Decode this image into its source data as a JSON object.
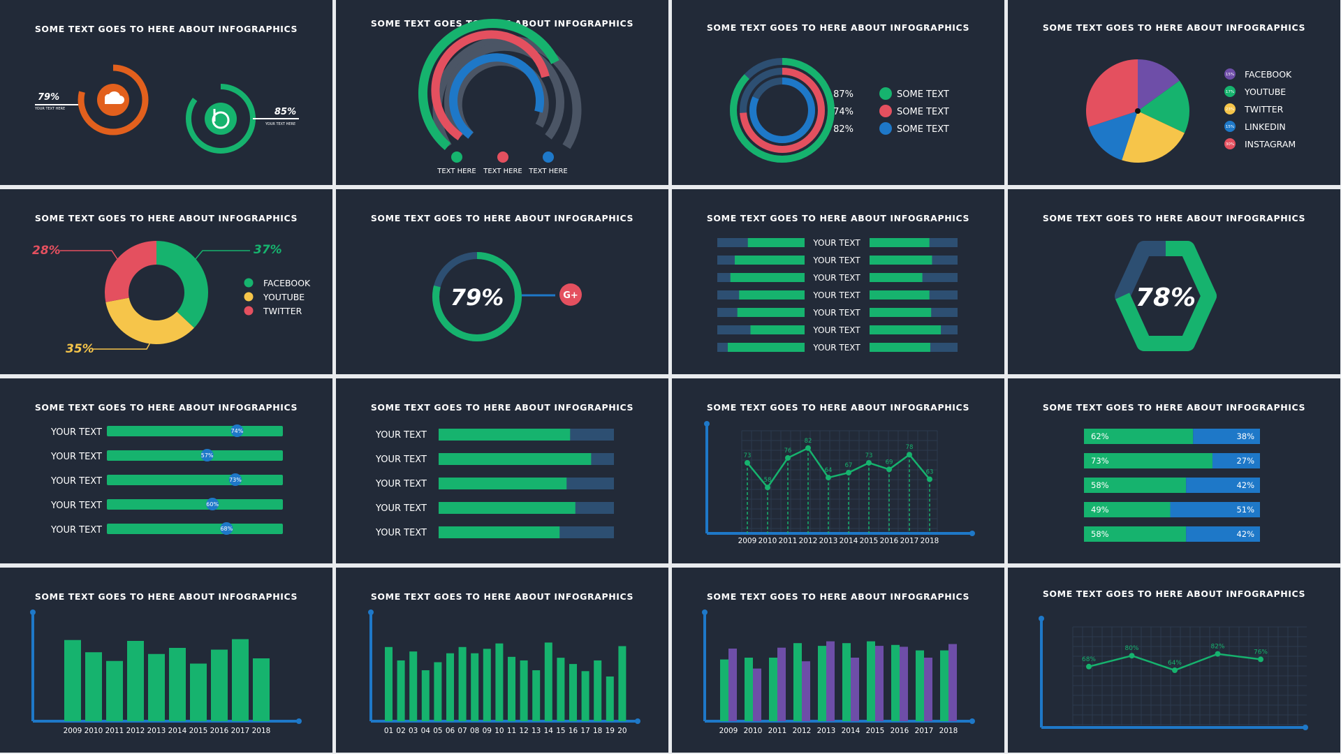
{
  "title": "SOME TEXT GOES TO HERE ABOUT INFOGRAPHICS",
  "colors": {
    "bg": "#222a38",
    "green": "#16b36e",
    "red": "#e4505f",
    "blue": "#1e78c8",
    "dark_blue": "#2d4f72",
    "orange": "#e2601d",
    "yellow": "#f6c54a",
    "purple": "#6e4ea8",
    "gray": "#4b5565"
  },
  "p1": {
    "items": [
      {
        "value": "79%",
        "caption": "YOUR TEXT HERE",
        "icon": "soundcloud-icon",
        "color": "#e2601d",
        "progress": 0.79
      },
      {
        "value": "85%",
        "caption": "YOUR TEXT HERE",
        "icon": "b-logo-icon",
        "color": "#16b36e",
        "progress": 0.85
      }
    ]
  },
  "p2": {
    "labels": [
      "TEXT HERE",
      "TEXT HERE",
      "TEXT HERE"
    ]
  },
  "p3": {
    "rows": [
      {
        "value": "87%",
        "label": "SOME TEXT",
        "color": "#16b36e",
        "progress": 0.87
      },
      {
        "value": "74%",
        "label": "SOME TEXT",
        "color": "#e4505f",
        "progress": 0.74
      },
      {
        "value": "82%",
        "label": "SOME TEXT",
        "color": "#1e78c8",
        "progress": 0.82
      }
    ]
  },
  "p5": {
    "value_37": "37%",
    "value_28": "28%",
    "value_35": "35%"
  },
  "p6": {
    "value": "79%",
    "icon": "google-plus-icon"
  },
  "p7": {
    "labels": [
      "YOUR TEXT",
      "YOUR TEXT",
      "YOUR TEXT",
      "YOUR TEXT",
      "YOUR TEXT",
      "YOUR TEXT",
      "YOUR TEXT"
    ]
  },
  "p8": {
    "value": "78%"
  },
  "p9": {
    "labels": [
      "YOUR TEXT",
      "YOUR TEXT",
      "YOUR TEXT",
      "YOUR TEXT",
      "YOUR TEXT"
    ]
  },
  "p10": {
    "labels": [
      "YOUR TEXT",
      "YOUR TEXT",
      "YOUR TEXT",
      "YOUR TEXT",
      "YOUR TEXT"
    ]
  },
  "chart_data": [
    {
      "type": "bar",
      "title": "SOME TEXT GOES TO HERE ABOUT INFOGRAPHICS",
      "name": "half-rings",
      "series": [
        {
          "name": "outer",
          "values": [
            0.62
          ]
        },
        {
          "name": "middle",
          "values": [
            0.55
          ]
        },
        {
          "name": "inner",
          "values": [
            0.45
          ]
        }
      ]
    },
    {
      "type": "pie",
      "title": "SOME TEXT GOES TO HERE ABOUT INFOGRAPHICS",
      "name": "social-pie",
      "categories": [
        "FACEBOOK",
        "YOUTUBE",
        "TWITTER",
        "LINKEDIN",
        "INSTAGRAM"
      ],
      "values": [
        15,
        17,
        23,
        15,
        30
      ],
      "value_labels": [
        "15%",
        "17%",
        "23%",
        "15%",
        "30%"
      ],
      "colors": [
        "#6e4ea8",
        "#16b36e",
        "#f6c54a",
        "#1e78c8",
        "#e4505f"
      ]
    },
    {
      "type": "pie",
      "title": "SOME TEXT GOES TO HERE ABOUT INFOGRAPHICS",
      "name": "social-donut",
      "categories": [
        "FACEBOOK",
        "YOUTUBE",
        "TWITTER"
      ],
      "values": [
        37,
        35,
        28
      ],
      "colors": [
        "#16b36e",
        "#f6c54a",
        "#e4505f"
      ]
    },
    {
      "type": "bar",
      "title": "SOME TEXT GOES TO HERE ABOUT INFOGRAPHICS",
      "name": "paired-bars",
      "series": [
        {
          "name": "left",
          "values": [
            0.65,
            0.8,
            0.85,
            0.75,
            0.77,
            0.62,
            0.88
          ]
        },
        {
          "name": "right",
          "values": [
            0.68,
            0.71,
            0.6,
            0.68,
            0.7,
            0.81,
            0.69
          ]
        }
      ]
    },
    {
      "type": "bar",
      "title": "SOME TEXT GOES TO HERE ABOUT INFOGRAPHICS",
      "name": "marker-bars",
      "values": [
        74,
        57,
        73,
        60,
        68
      ],
      "value_labels": [
        "74%",
        "57%",
        "73%",
        "60%",
        "68%"
      ]
    },
    {
      "type": "bar",
      "title": "SOME TEXT GOES TO HERE ABOUT INFOGRAPHICS",
      "name": "progress-bars",
      "values": [
        75,
        87,
        73,
        78,
        69
      ]
    },
    {
      "type": "line",
      "title": "SOME TEXT GOES TO HERE ABOUT INFOGRAPHICS",
      "name": "yearly-line",
      "x": [
        "2009",
        "2010",
        "2011",
        "2012",
        "2013",
        "2014",
        "2015",
        "2016",
        "2017",
        "2018"
      ],
      "values": [
        73,
        58,
        76,
        82,
        64,
        67,
        73,
        69,
        78,
        63
      ]
    },
    {
      "type": "bar",
      "title": "SOME TEXT GOES TO HERE ABOUT INFOGRAPHICS",
      "name": "stacked-percent",
      "series": [
        {
          "name": "green",
          "values": [
            62,
            73,
            58,
            49,
            58
          ]
        },
        {
          "name": "blue",
          "values": [
            38,
            27,
            42,
            51,
            42
          ]
        }
      ]
    },
    {
      "type": "bar",
      "title": "SOME TEXT GOES TO HERE ABOUT INFOGRAPHICS",
      "name": "yearly-bars",
      "categories": [
        "2009",
        "2010",
        "2011",
        "2012",
        "2013",
        "2014",
        "2015",
        "2016",
        "2017",
        "2018"
      ],
      "values": [
        93,
        79,
        69,
        92,
        77,
        84,
        66,
        82,
        94,
        72
      ]
    },
    {
      "type": "bar",
      "title": "SOME TEXT GOES TO HERE ABOUT INFOGRAPHICS",
      "name": "numbered-bars",
      "categories": [
        "01",
        "02",
        "03",
        "04",
        "05",
        "06",
        "07",
        "08",
        "09",
        "10",
        "11",
        "12",
        "13",
        "14",
        "15",
        "16",
        "17",
        "18",
        "19",
        "20"
      ],
      "values": [
        83,
        68,
        78,
        57,
        66,
        76,
        83,
        76,
        81,
        87,
        72,
        68,
        57,
        88,
        71,
        64,
        56,
        68,
        50,
        84
      ]
    },
    {
      "type": "bar",
      "title": "SOME TEXT GOES TO HERE ABOUT INFOGRAPHICS",
      "name": "grouped-bars",
      "categories": [
        "2009",
        "2010",
        "2011",
        "2012",
        "2013",
        "2014",
        "2015",
        "2016",
        "2017",
        "2018"
      ],
      "series": [
        {
          "name": "green",
          "values": [
            68,
            70,
            70,
            86,
            83,
            86,
            88,
            84,
            78,
            78
          ]
        },
        {
          "name": "purple",
          "values": [
            80,
            58,
            81,
            66,
            88,
            70,
            83,
            82,
            70,
            85
          ]
        }
      ]
    },
    {
      "type": "line",
      "title": "SOME TEXT GOES TO HERE ABOUT INFOGRAPHICS",
      "name": "percent-line",
      "values": [
        68,
        80,
        64,
        82,
        76
      ],
      "value_labels": [
        "68%",
        "80%",
        "64%",
        "82%",
        "76%"
      ]
    }
  ]
}
